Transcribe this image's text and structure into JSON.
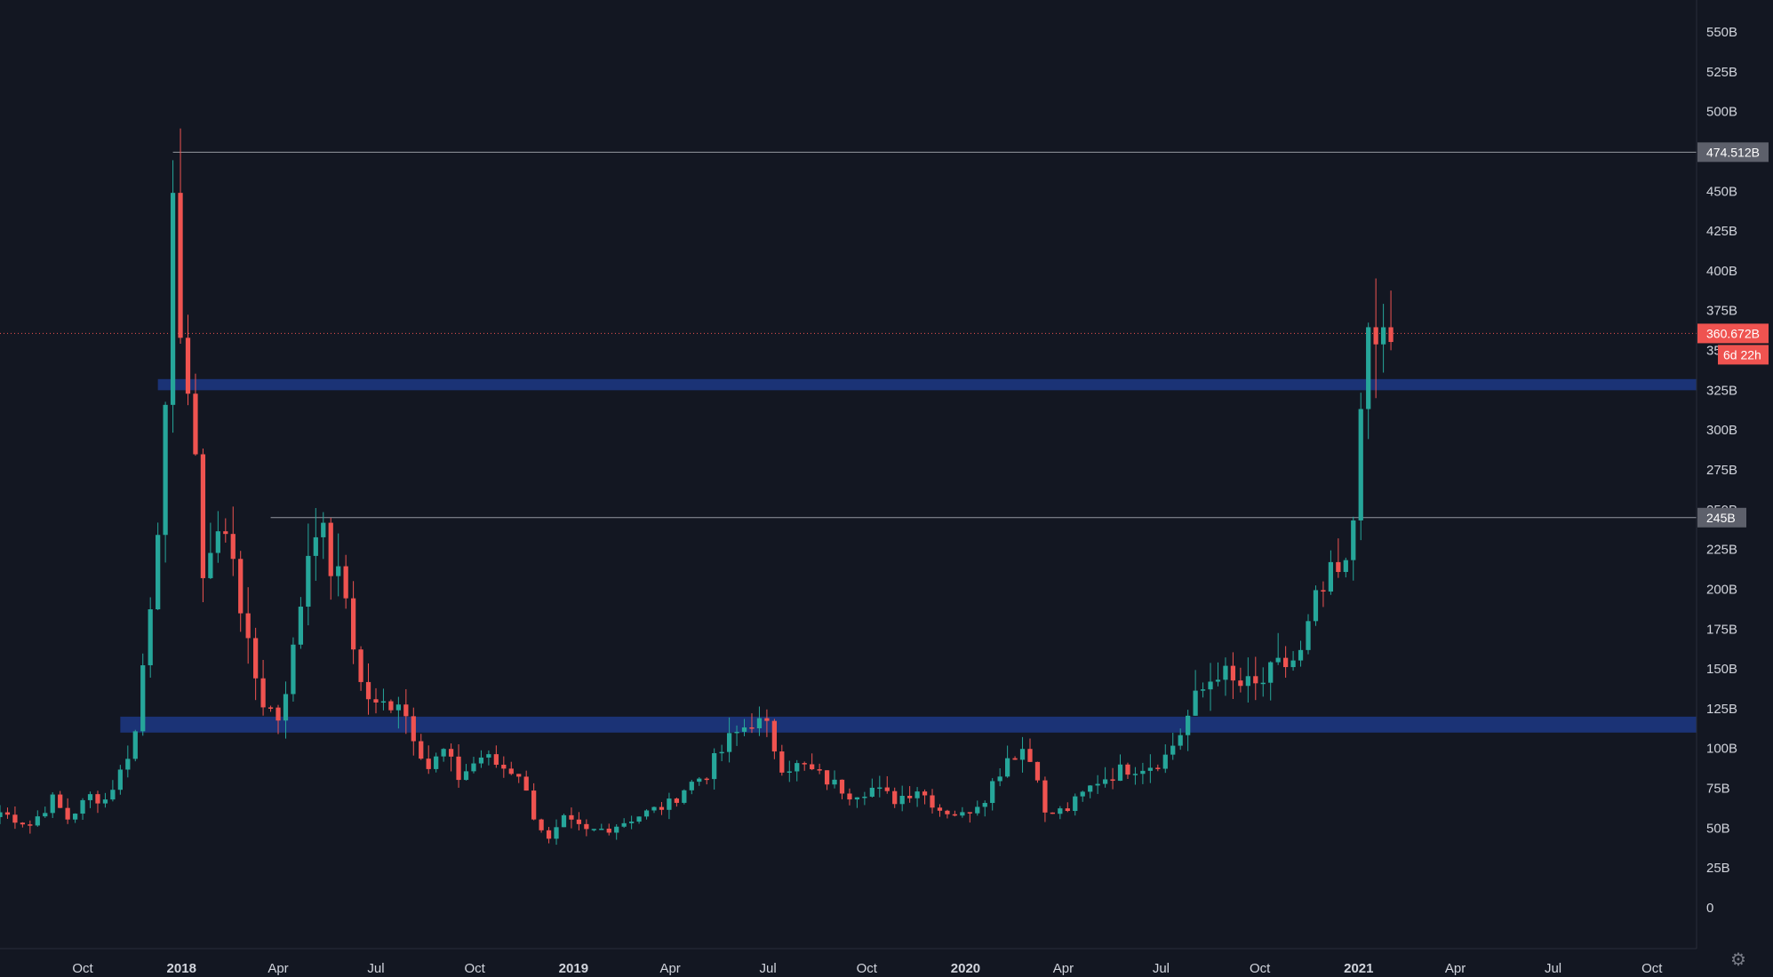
{
  "chart_data": {
    "type": "candlestick",
    "title": "",
    "xlabel": "",
    "ylabel": "",
    "y_unit": "B",
    "ylim": [
      -40,
      570
    ],
    "xlim": [
      "2017-07-16",
      "2021-10-31"
    ],
    "colors": {
      "up": "#26a69a",
      "down": "#ef5350",
      "zone": "#2962ff",
      "level": "#787b86",
      "background": "#131722"
    },
    "y_ticks": [
      "550B",
      "525B",
      "500B",
      "475B",
      "450B",
      "425B",
      "400B",
      "375B",
      "350B",
      "325B",
      "300B",
      "275B",
      "250B",
      "225B",
      "200B",
      "175B",
      "150B",
      "125B",
      "100B",
      "75B",
      "50B",
      "25B",
      "0"
    ],
    "y_tick_values": [
      550,
      525,
      500,
      475,
      450,
      425,
      400,
      375,
      350,
      325,
      300,
      275,
      250,
      225,
      200,
      175,
      150,
      125,
      100,
      75,
      50,
      25,
      0
    ],
    "x_ticks": [
      {
        "label": "Oct",
        "date": "2017-10-01",
        "bold": false
      },
      {
        "label": "2018",
        "date": "2018-01-01",
        "bold": true
      },
      {
        "label": "Apr",
        "date": "2018-04-01",
        "bold": false
      },
      {
        "label": "Jul",
        "date": "2018-07-01",
        "bold": false
      },
      {
        "label": "Oct",
        "date": "2018-10-01",
        "bold": false
      },
      {
        "label": "2019",
        "date": "2019-01-01",
        "bold": true
      },
      {
        "label": "Apr",
        "date": "2019-04-01",
        "bold": false
      },
      {
        "label": "Jul",
        "date": "2019-07-01",
        "bold": false
      },
      {
        "label": "Oct",
        "date": "2019-10-01",
        "bold": false
      },
      {
        "label": "2020",
        "date": "2020-01-01",
        "bold": true
      },
      {
        "label": "Apr",
        "date": "2020-04-01",
        "bold": false
      },
      {
        "label": "Jul",
        "date": "2020-07-01",
        "bold": false
      },
      {
        "label": "Oct",
        "date": "2020-10-01",
        "bold": false
      },
      {
        "label": "2021",
        "date": "2021-01-01",
        "bold": true
      },
      {
        "label": "Apr",
        "date": "2021-04-01",
        "bold": false
      },
      {
        "label": "Jul",
        "date": "2021-07-01",
        "bold": false
      },
      {
        "label": "Oct",
        "date": "2021-10-01",
        "bold": false
      }
    ],
    "horizontal_lines": [
      {
        "value": 474.512,
        "label": "474.512B",
        "start": "2017-12-24"
      },
      {
        "value": 245,
        "label": "245B",
        "start": "2018-03-25"
      }
    ],
    "zones": [
      {
        "low": 325,
        "high": 332,
        "start": "2017-12-10"
      },
      {
        "low": 110,
        "high": 120,
        "start": "2017-11-05"
      }
    ],
    "current_price": {
      "value": 360.672,
      "label": "360.672B",
      "countdown": "6d 22h"
    },
    "anchors": [
      [
        "2017-07-16",
        60
      ],
      [
        "2017-08-13",
        52
      ],
      [
        "2017-09-03",
        68
      ],
      [
        "2017-09-17",
        56
      ],
      [
        "2017-10-08",
        70
      ],
      [
        "2017-10-22",
        68
      ],
      [
        "2017-11-05",
        85
      ],
      [
        "2017-11-19",
        110
      ],
      [
        "2017-12-03",
        195
      ],
      [
        "2017-12-17",
        300
      ],
      [
        "2017-12-24",
        425
      ],
      [
        "2018-01-07",
        325
      ],
      [
        "2018-01-21",
        215
      ],
      [
        "2018-02-04",
        235
      ],
      [
        "2018-02-18",
        225
      ],
      [
        "2018-03-04",
        160
      ],
      [
        "2018-03-18",
        130
      ],
      [
        "2018-04-01",
        120
      ],
      [
        "2018-04-15",
        160
      ],
      [
        "2018-04-29",
        225
      ],
      [
        "2018-05-06",
        245
      ],
      [
        "2018-05-20",
        215
      ],
      [
        "2018-06-03",
        195
      ],
      [
        "2018-06-17",
        140
      ],
      [
        "2018-07-01",
        125
      ],
      [
        "2018-07-22",
        132
      ],
      [
        "2018-08-05",
        110
      ],
      [
        "2018-08-19",
        88
      ],
      [
        "2018-09-02",
        98
      ],
      [
        "2018-09-16",
        82
      ],
      [
        "2018-10-07",
        95
      ],
      [
        "2018-10-28",
        88
      ],
      [
        "2018-11-11",
        85
      ],
      [
        "2018-11-25",
        58
      ],
      [
        "2018-12-09",
        42
      ],
      [
        "2018-12-23",
        55
      ],
      [
        "2019-01-13",
        48
      ],
      [
        "2019-02-03",
        50
      ],
      [
        "2019-03-03",
        58
      ],
      [
        "2019-03-31",
        65
      ],
      [
        "2019-04-14",
        75
      ],
      [
        "2019-05-05",
        85
      ],
      [
        "2019-05-26",
        105
      ],
      [
        "2019-06-16",
        118
      ],
      [
        "2019-06-30",
        112
      ],
      [
        "2019-07-14",
        90
      ],
      [
        "2019-08-04",
        88
      ],
      [
        "2019-08-25",
        80
      ],
      [
        "2019-09-15",
        72
      ],
      [
        "2019-10-06",
        75
      ],
      [
        "2019-10-27",
        68
      ],
      [
        "2019-11-17",
        75
      ],
      [
        "2019-12-08",
        62
      ],
      [
        "2019-12-29",
        58
      ],
      [
        "2020-01-19",
        70
      ],
      [
        "2020-02-09",
        95
      ],
      [
        "2020-02-23",
        100
      ],
      [
        "2020-03-08",
        85
      ],
      [
        "2020-03-15",
        58
      ],
      [
        "2020-04-05",
        62
      ],
      [
        "2020-05-03",
        80
      ],
      [
        "2020-05-31",
        88
      ],
      [
        "2020-06-21",
        90
      ],
      [
        "2020-07-05",
        95
      ],
      [
        "2020-07-19",
        110
      ],
      [
        "2020-08-02",
        130
      ],
      [
        "2020-08-23",
        150
      ],
      [
        "2020-09-06",
        140
      ],
      [
        "2020-09-27",
        138
      ],
      [
        "2020-10-18",
        150
      ],
      [
        "2020-11-08",
        158
      ],
      [
        "2020-11-22",
        190
      ],
      [
        "2020-12-06",
        205
      ],
      [
        "2020-12-20",
        210
      ],
      [
        "2020-12-27",
        245
      ],
      [
        "2021-01-03",
        330
      ],
      [
        "2021-01-10",
        345
      ],
      [
        "2021-01-24",
        358
      ],
      [
        "2021-01-31",
        360
      ]
    ]
  },
  "ui": {
    "settings_icon": "gear-icon",
    "settings_glyph": "⚙"
  }
}
